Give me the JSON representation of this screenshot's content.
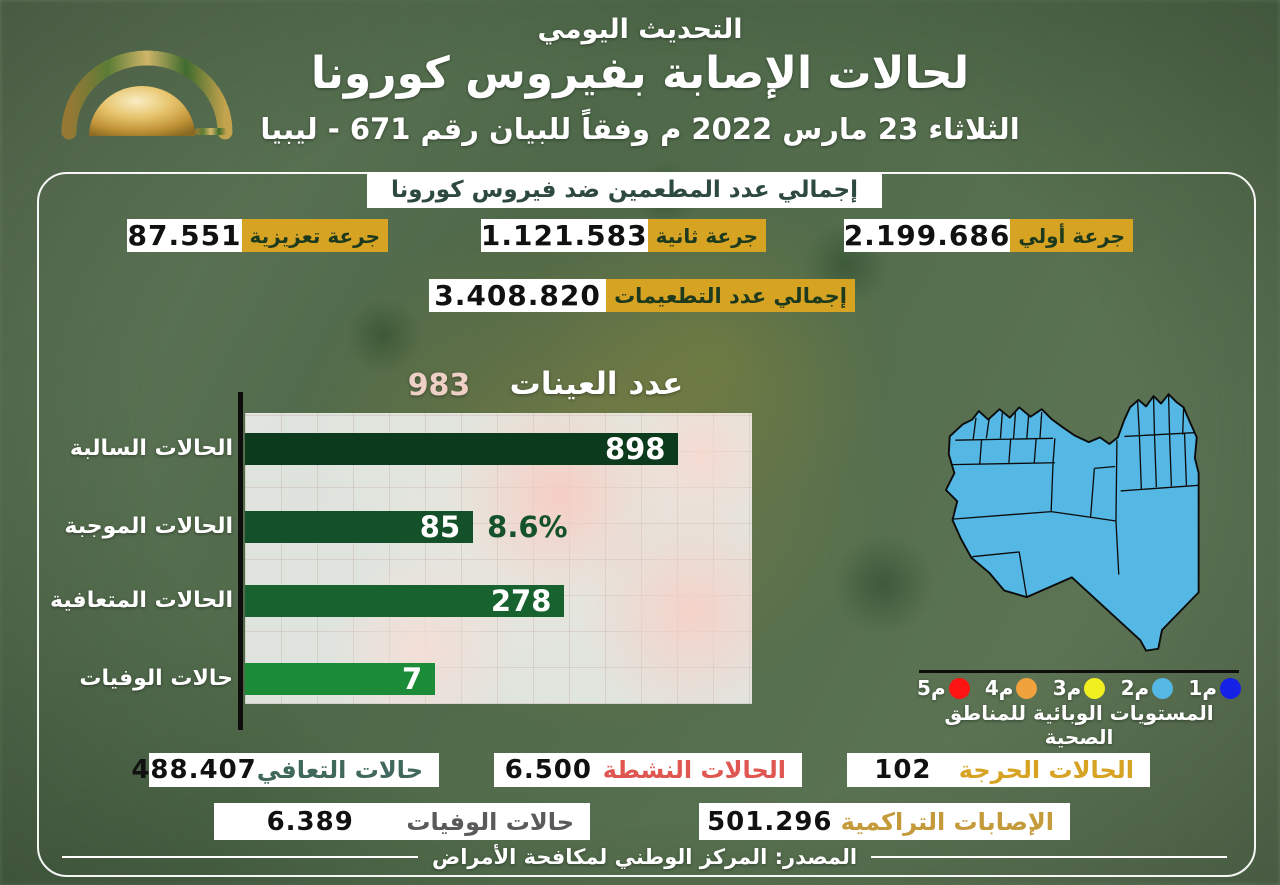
{
  "header": {
    "line1": "التحديث اليومي",
    "line2": "لحالات الإصابة بفيروس كورونا",
    "line3": "الثلاثاء 23 مارس 2022 م وفقاً للبيان رقم 671 - ليبيا"
  },
  "vaccination": {
    "title": "إجمالي عدد المطعمين ضد فيروس كورونا",
    "doses": [
      {
        "label": "جرعة أولي",
        "value": "2.199.686"
      },
      {
        "label": "جرعة ثانية",
        "value": "1.121.583"
      },
      {
        "label": "جرعة تعزيزية",
        "value": "87.551"
      }
    ],
    "total": {
      "label": "إجمالي عدد التطعيمات",
      "value": "3.408.820"
    }
  },
  "chart_data": {
    "type": "bar",
    "orientation": "horizontal",
    "title": "عدد العينات",
    "total_samples": "983",
    "total_color": "#eed0c6",
    "categories": [
      "الحالات السالبة",
      "الحالات الموجبة",
      "الحالات المتعافية",
      "حالات الوفيات"
    ],
    "values": [
      "898",
      "85",
      "278",
      "7"
    ],
    "positive_percent": "8.6%",
    "bar_colors": [
      "#0c3a1c",
      "#14512a",
      "#186230",
      "#1d8c38"
    ],
    "bar_widths_pct": [
      85.5,
      45,
      63,
      37.5
    ],
    "plot_bg": "#fbece9",
    "grid": "on"
  },
  "map": {
    "region_fill": "#55b7e3",
    "legend_title": "المستويات الوبائية للمناطق الصحية",
    "levels": [
      {
        "label": "م1",
        "color": "#1522e6"
      },
      {
        "label": "م2",
        "color": "#55b7e3"
      },
      {
        "label": "م3",
        "color": "#f1ef20"
      },
      {
        "label": "م4",
        "color": "#f0a23d"
      },
      {
        "label": "م5",
        "color": "#fd1412"
      }
    ]
  },
  "stats": {
    "row1": [
      {
        "label": "الحالات الحرجة",
        "value": "102",
        "label_color": "#d7a322"
      },
      {
        "label": "الحالات النشطة",
        "value": "6.500",
        "label_color": "#e05752"
      },
      {
        "label": "حالات التعافي",
        "value": "488.407",
        "label_color": "#41685c"
      }
    ],
    "row2": [
      {
        "label": "الإصابات التراكمية",
        "value": "501.296",
        "label_color": "#c49a3a"
      },
      {
        "label": "حالات الوفيات",
        "value": "6.389",
        "label_color": "#5a5a5a"
      }
    ]
  },
  "source": "المصدر: المركز الوطني لمكافحة الأمراض",
  "colors": {
    "gold": "#d7a322",
    "panel_border": "#ffffff",
    "background_green": "#56704e",
    "bar_axis": "#0d0d0d"
  }
}
